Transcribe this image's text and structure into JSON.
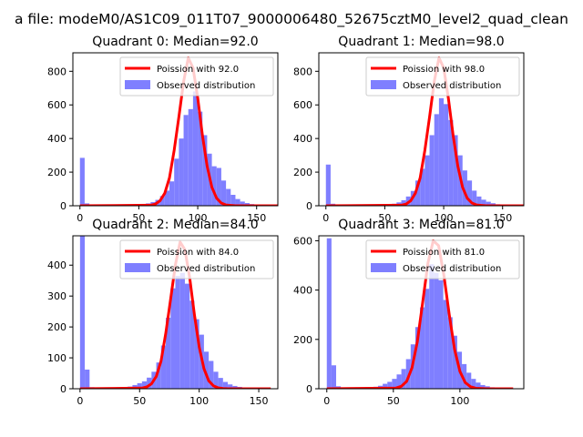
{
  "figure": {
    "suptitle": "a file: modeM0/AS1C09_011T07_9000006480_52675cztM0_level2_quad_clean"
  },
  "colors": {
    "poisson": "#ff0000",
    "observed": "#7f7fff",
    "axis": "#000000",
    "background": "#ffffff"
  },
  "chart_data": [
    {
      "type": "bar",
      "title": "Quadrant 0: Median=92.0",
      "xlim": [
        -6,
        168
      ],
      "ylim": [
        0,
        910
      ],
      "xticks": [
        0,
        50,
        100,
        150
      ],
      "yticks": [
        0,
        200,
        400,
        600,
        800
      ],
      "median": 92.0,
      "legend": [
        "Poission with 92.0",
        "Observed distribution"
      ],
      "legend_position": "upper right",
      "bin_width": 4,
      "bins": [
        [
          0,
          285
        ],
        [
          4,
          14
        ],
        [
          8,
          4
        ],
        [
          12,
          3
        ],
        [
          16,
          2
        ],
        [
          20,
          2
        ],
        [
          24,
          2
        ],
        [
          28,
          3
        ],
        [
          32,
          3
        ],
        [
          36,
          4
        ],
        [
          40,
          5
        ],
        [
          44,
          6
        ],
        [
          48,
          8
        ],
        [
          52,
          10
        ],
        [
          56,
          14
        ],
        [
          60,
          22
        ],
        [
          64,
          35
        ],
        [
          68,
          58
        ],
        [
          72,
          90
        ],
        [
          76,
          145
        ],
        [
          80,
          280
        ],
        [
          84,
          400
        ],
        [
          88,
          540
        ],
        [
          92,
          575
        ],
        [
          96,
          680
        ],
        [
          100,
          560
        ],
        [
          104,
          420
        ],
        [
          108,
          310
        ],
        [
          112,
          235
        ],
        [
          116,
          225
        ],
        [
          120,
          150
        ],
        [
          124,
          100
        ],
        [
          128,
          65
        ],
        [
          132,
          40
        ],
        [
          136,
          25
        ],
        [
          140,
          16
        ],
        [
          144,
          10
        ],
        [
          148,
          6
        ],
        [
          152,
          4
        ],
        [
          156,
          3
        ],
        [
          160,
          2
        ]
      ],
      "series": [
        {
          "name": "Poission with 92.0",
          "x": [
            0,
            60,
            64,
            68,
            72,
            76,
            80,
            84,
            88,
            92,
            96,
            100,
            104,
            108,
            112,
            116,
            120,
            124,
            128,
            132,
            168
          ],
          "y": [
            0,
            3,
            10,
            30,
            75,
            165,
            330,
            530,
            740,
            880,
            820,
            640,
            420,
            235,
            110,
            45,
            16,
            5,
            2,
            0,
            0
          ]
        }
      ]
    },
    {
      "type": "bar",
      "title": "Quadrant 1: Median=98.0",
      "xlim": [
        -6,
        168
      ],
      "ylim": [
        0,
        910
      ],
      "xticks": [
        0,
        50,
        100,
        150
      ],
      "yticks": [
        0,
        200,
        400,
        600,
        800
      ],
      "median": 98.0,
      "legend": [
        "Poission with 98.0",
        "Observed distribution"
      ],
      "legend_position": "upper right",
      "bin_width": 4,
      "bins": [
        [
          0,
          245
        ],
        [
          4,
          12
        ],
        [
          8,
          4
        ],
        [
          12,
          3
        ],
        [
          16,
          2
        ],
        [
          20,
          2
        ],
        [
          24,
          2
        ],
        [
          28,
          2
        ],
        [
          32,
          3
        ],
        [
          36,
          3
        ],
        [
          40,
          4
        ],
        [
          44,
          5
        ],
        [
          48,
          6
        ],
        [
          52,
          8
        ],
        [
          56,
          12
        ],
        [
          60,
          20
        ],
        [
          64,
          33
        ],
        [
          68,
          55
        ],
        [
          72,
          88
        ],
        [
          76,
          150
        ],
        [
          80,
          220
        ],
        [
          84,
          300
        ],
        [
          88,
          420
        ],
        [
          92,
          545
        ],
        [
          96,
          640
        ],
        [
          100,
          605
        ],
        [
          104,
          510
        ],
        [
          108,
          420
        ],
        [
          112,
          300
        ],
        [
          116,
          210
        ],
        [
          120,
          150
        ],
        [
          124,
          90
        ],
        [
          128,
          55
        ],
        [
          132,
          36
        ],
        [
          136,
          24
        ],
        [
          140,
          15
        ],
        [
          144,
          9
        ],
        [
          148,
          5
        ],
        [
          152,
          3
        ],
        [
          156,
          2
        ],
        [
          160,
          2
        ]
      ],
      "series": [
        {
          "name": "Poission with 98.0",
          "x": [
            0,
            64,
            68,
            72,
            76,
            80,
            84,
            88,
            92,
            96,
            100,
            104,
            108,
            112,
            116,
            120,
            124,
            128,
            132,
            136,
            168
          ],
          "y": [
            0,
            3,
            10,
            30,
            75,
            165,
            330,
            530,
            740,
            880,
            820,
            640,
            420,
            235,
            110,
            45,
            16,
            5,
            2,
            0,
            0
          ]
        }
      ]
    },
    {
      "type": "bar",
      "title": "Quadrant 2: Median=84.0",
      "xlim": [
        -6,
        166
      ],
      "ylim": [
        0,
        495
      ],
      "xticks": [
        0,
        50,
        100,
        150
      ],
      "yticks": [
        0,
        100,
        200,
        300,
        400
      ],
      "median": 84.0,
      "legend": [
        "Poission with 84.0",
        "Observed distribution"
      ],
      "legend_position": "upper right",
      "bin_width": 4,
      "bins": [
        [
          0,
          495
        ],
        [
          4,
          62
        ],
        [
          8,
          5
        ],
        [
          12,
          3
        ],
        [
          16,
          2
        ],
        [
          20,
          2
        ],
        [
          24,
          3
        ],
        [
          28,
          3
        ],
        [
          32,
          4
        ],
        [
          36,
          5
        ],
        [
          40,
          7
        ],
        [
          44,
          12
        ],
        [
          48,
          18
        ],
        [
          52,
          24
        ],
        [
          56,
          36
        ],
        [
          60,
          55
        ],
        [
          64,
          85
        ],
        [
          68,
          140
        ],
        [
          72,
          230
        ],
        [
          76,
          325
        ],
        [
          80,
          365
        ],
        [
          84,
          375
        ],
        [
          88,
          340
        ],
        [
          92,
          285
        ],
        [
          96,
          225
        ],
        [
          100,
          175
        ],
        [
          104,
          120
        ],
        [
          108,
          90
        ],
        [
          112,
          55
        ],
        [
          116,
          35
        ],
        [
          120,
          22
        ],
        [
          124,
          14
        ],
        [
          128,
          9
        ],
        [
          132,
          6
        ],
        [
          136,
          4
        ],
        [
          140,
          3
        ],
        [
          144,
          2
        ],
        [
          148,
          2
        ],
        [
          152,
          2
        ],
        [
          156,
          1
        ]
      ],
      "series": [
        {
          "name": "Poission with 84.0",
          "x": [
            0,
            52,
            56,
            60,
            64,
            68,
            72,
            76,
            80,
            84,
            88,
            92,
            96,
            100,
            104,
            108,
            112,
            116,
            120,
            124,
            160
          ],
          "y": [
            0,
            2,
            6,
            16,
            40,
            90,
            180,
            290,
            400,
            475,
            450,
            360,
            240,
            135,
            65,
            26,
            9,
            3,
            1,
            0,
            0
          ]
        }
      ]
    },
    {
      "type": "bar",
      "title": "Quadrant 3: Median=81.0",
      "xlim": [
        -6,
        148
      ],
      "ylim": [
        0,
        620
      ],
      "xticks": [
        0,
        50,
        100
      ],
      "yticks": [
        0,
        200,
        400,
        600
      ],
      "median": 81.0,
      "legend": [
        "Poission with 81.0",
        "Observed distribution"
      ],
      "legend_position": "upper right",
      "bin_width": 3.5,
      "bins": [
        [
          0,
          610
        ],
        [
          3.5,
          95
        ],
        [
          7,
          10
        ],
        [
          10.5,
          5
        ],
        [
          14,
          4
        ],
        [
          17.5,
          3
        ],
        [
          21,
          3
        ],
        [
          24.5,
          3
        ],
        [
          28,
          4
        ],
        [
          31.5,
          5
        ],
        [
          35,
          8
        ],
        [
          38.5,
          12
        ],
        [
          42,
          20
        ],
        [
          45.5,
          28
        ],
        [
          49,
          40
        ],
        [
          52.5,
          58
        ],
        [
          56,
          80
        ],
        [
          59.5,
          120
        ],
        [
          63,
          180
        ],
        [
          66.5,
          250
        ],
        [
          70,
          330
        ],
        [
          73.5,
          405
        ],
        [
          77,
          505
        ],
        [
          80.5,
          470
        ],
        [
          84,
          440
        ],
        [
          87.5,
          360
        ],
        [
          91,
          290
        ],
        [
          94.5,
          215
        ],
        [
          98,
          150
        ],
        [
          101.5,
          100
        ],
        [
          105,
          65
        ],
        [
          108.5,
          40
        ],
        [
          112,
          25
        ],
        [
          115.5,
          15
        ],
        [
          119,
          10
        ],
        [
          122.5,
          6
        ],
        [
          126,
          4
        ],
        [
          129.5,
          3
        ],
        [
          133,
          2
        ],
        [
          136.5,
          1
        ]
      ],
      "series": [
        {
          "name": "Poission with 81.0",
          "x": [
            0,
            52,
            56,
            60,
            64,
            68,
            72,
            76,
            80,
            84,
            88,
            92,
            96,
            100,
            104,
            108,
            112,
            116,
            120,
            140
          ],
          "y": [
            0,
            3,
            10,
            30,
            85,
            190,
            350,
            510,
            600,
            580,
            460,
            300,
            160,
            70,
            25,
            8,
            2,
            1,
            0,
            0
          ]
        }
      ]
    }
  ]
}
